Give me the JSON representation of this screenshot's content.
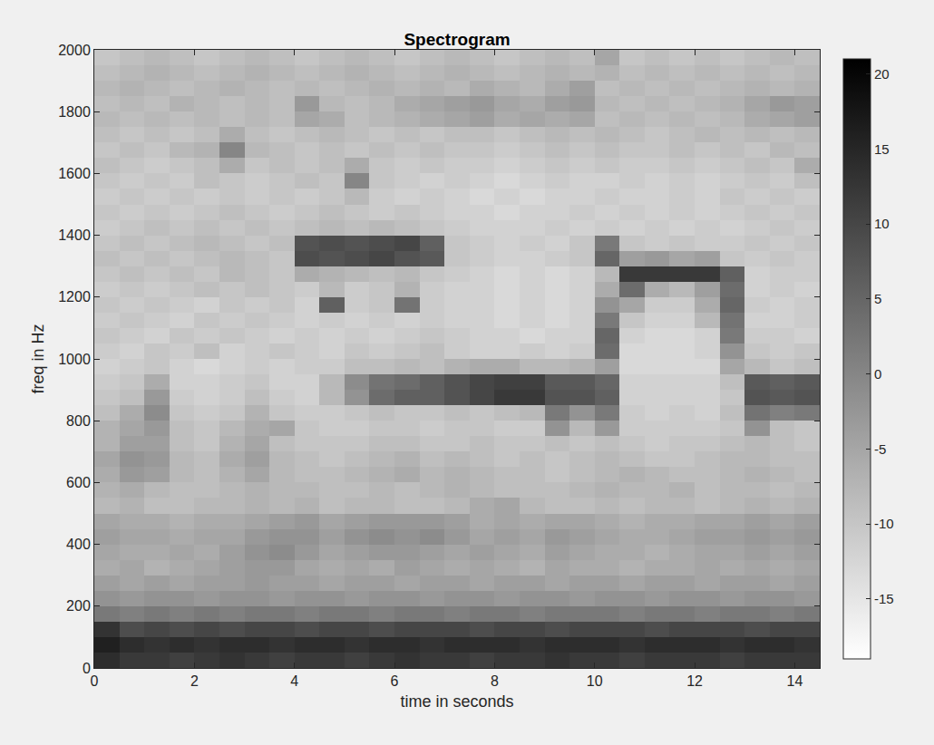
{
  "chart_data": {
    "type": "heatmap",
    "title": "Spectrogram",
    "x_label": "time in seconds",
    "y_label": "freq in Hz",
    "grid": false,
    "xlim": [
      0,
      14.5
    ],
    "ylim": [
      0,
      2000
    ],
    "xticks": [
      0,
      2,
      4,
      6,
      8,
      10,
      12,
      14
    ],
    "yticks": [
      0,
      200,
      400,
      600,
      800,
      1000,
      1200,
      1400,
      1600,
      1800,
      2000
    ],
    "color_range": [
      -19,
      21
    ],
    "color_ticks": [
      -15,
      -10,
      -5,
      0,
      5,
      10,
      15,
      20
    ],
    "x": [
      0.25,
      0.75,
      1.25,
      1.75,
      2.25,
      2.75,
      3.25,
      3.75,
      4.25,
      4.75,
      5.25,
      5.75,
      6.25,
      6.75,
      7.25,
      7.75,
      8.25,
      8.75,
      9.25,
      9.75,
      10.25,
      10.75,
      11.25,
      11.75,
      12.25,
      12.75,
      13.25,
      13.75,
      14.25
    ],
    "y": [
      25,
      75,
      125,
      175,
      225,
      275,
      325,
      375,
      425,
      475,
      525,
      575,
      625,
      675,
      725,
      775,
      825,
      875,
      925,
      975,
      1025,
      1075,
      1125,
      1175,
      1225,
      1275,
      1325,
      1375,
      1425,
      1475,
      1525,
      1575,
      1625,
      1675,
      1725,
      1775,
      1825,
      1875,
      1925,
      1975
    ],
    "z": [
      [
        14,
        12,
        12,
        11,
        12,
        13,
        12,
        11,
        12,
        12,
        11,
        12,
        13,
        12,
        12,
        11,
        12,
        12,
        13,
        12,
        12,
        11,
        12,
        12,
        12,
        11,
        12,
        12,
        12
      ],
      [
        16,
        14,
        13,
        14,
        13,
        14,
        14,
        13,
        14,
        14,
        13,
        14,
        14,
        13,
        14,
        14,
        14,
        13,
        14,
        14,
        14,
        13,
        14,
        14,
        14,
        13,
        14,
        14,
        13
      ],
      [
        13,
        9,
        10,
        9,
        10,
        9,
        10,
        10,
        9,
        10,
        10,
        9,
        10,
        10,
        10,
        9,
        10,
        10,
        9,
        10,
        10,
        10,
        9,
        10,
        10,
        10,
        9,
        10,
        10
      ],
      [
        2,
        1,
        2,
        1,
        2,
        1,
        2,
        2,
        1,
        2,
        2,
        1,
        2,
        2,
        1,
        2,
        2,
        1,
        2,
        2,
        2,
        1,
        2,
        2,
        1,
        2,
        2,
        1,
        2
      ],
      [
        -2,
        -3,
        -2,
        -2,
        -3,
        -2,
        -2,
        -3,
        -2,
        -2,
        -3,
        -2,
        -2,
        -3,
        -2,
        -2,
        -3,
        -2,
        -2,
        -3,
        -2,
        -2,
        -3,
        -2,
        -2,
        -3,
        -2,
        -2,
        -3
      ],
      [
        -4,
        -5,
        -4,
        -5,
        -4,
        -4,
        -3,
        -4,
        -4,
        -5,
        -4,
        -4,
        -5,
        -4,
        -4,
        -5,
        -4,
        -4,
        -5,
        -4,
        -4,
        -5,
        -4,
        -4,
        -5,
        -4,
        -4,
        -5,
        -4
      ],
      [
        -6,
        -5,
        -7,
        -6,
        -5,
        -4,
        -3,
        -3,
        -5,
        -6,
        -5,
        -6,
        -4,
        -5,
        -6,
        -5,
        -6,
        -7,
        -5,
        -6,
        -6,
        -7,
        -6,
        -6,
        -5,
        -6,
        -5,
        -6,
        -5
      ],
      [
        -5,
        -6,
        -6,
        -5,
        -6,
        -4,
        -2,
        -1,
        -3,
        -5,
        -4,
        -3,
        -3,
        -4,
        -5,
        -4,
        -5,
        -6,
        -4,
        -5,
        -6,
        -6,
        -7,
        -6,
        -5,
        -5,
        -4,
        -5,
        -4
      ],
      [
        -4,
        -5,
        -5,
        -6,
        -5,
        -5,
        -3,
        -2,
        -2,
        -4,
        -2,
        -1,
        -2,
        -1,
        -3,
        -5,
        -4,
        -5,
        -3,
        -4,
        -5,
        -6,
        -6,
        -5,
        -4,
        -4,
        -3,
        -4,
        -3
      ],
      [
        -5,
        -6,
        -6,
        -7,
        -6,
        -6,
        -5,
        -4,
        -3,
        -5,
        -4,
        -3,
        -3,
        -3,
        -4,
        -6,
        -5,
        -6,
        -5,
        -5,
        -6,
        -7,
        -6,
        -6,
        -5,
        -5,
        -4,
        -5,
        -4
      ],
      [
        -8,
        -7,
        -9,
        -9,
        -8,
        -8,
        -7,
        -8,
        -7,
        -9,
        -8,
        -8,
        -9,
        -9,
        -8,
        -6,
        -5,
        -8,
        -9,
        -9,
        -8,
        -9,
        -8,
        -8,
        -9,
        -8,
        -7,
        -8,
        -7
      ],
      [
        -7,
        -6,
        -8,
        -9,
        -9,
        -8,
        -7,
        -8,
        -8,
        -9,
        -9,
        -8,
        -9,
        -8,
        -7,
        -8,
        -9,
        -9,
        -9,
        -8,
        -7,
        -8,
        -8,
        -7,
        -9,
        -8,
        -8,
        -9,
        -8
      ],
      [
        -6,
        -3,
        -4,
        -8,
        -9,
        -7,
        -5,
        -8,
        -9,
        -9,
        -8,
        -7,
        -6,
        -8,
        -7,
        -8,
        -9,
        -9,
        -10,
        -9,
        -8,
        -7,
        -8,
        -9,
        -9,
        -8,
        -7,
        -8,
        -9
      ],
      [
        -5,
        -2,
        -3,
        -8,
        -9,
        -6,
        -4,
        -8,
        -9,
        -10,
        -9,
        -8,
        -7,
        -9,
        -8,
        -9,
        -10,
        -9,
        -10,
        -9,
        -8,
        -9,
        -10,
        -10,
        -9,
        -8,
        -8,
        -9,
        -9
      ],
      [
        -7,
        -4,
        -4,
        -9,
        -10,
        -7,
        -5,
        -9,
        -10,
        -10,
        -10,
        -9,
        -9,
        -10,
        -10,
        -9,
        -10,
        -10,
        -9,
        -10,
        -9,
        -10,
        -11,
        -10,
        -10,
        -9,
        -8,
        -9,
        -10
      ],
      [
        -7,
        -5,
        -3,
        -9,
        -10,
        -8,
        -6,
        -5,
        -10,
        -11,
        -11,
        -10,
        -10,
        -11,
        -10,
        -10,
        -11,
        -11,
        -2,
        -8,
        -3,
        -11,
        -11,
        -11,
        -11,
        -10,
        -2,
        -9,
        -10
      ],
      [
        -9,
        -6,
        -1,
        -10,
        -11,
        -10,
        -7,
        -10,
        -11,
        -11,
        -10,
        -9,
        -10,
        -10,
        -9,
        -10,
        -9,
        -8,
        2,
        -2,
        2,
        -11,
        -12,
        -11,
        -12,
        -9,
        3,
        1,
        2
      ],
      [
        -10,
        -9,
        -3,
        -11,
        -12,
        -11,
        -9,
        -11,
        -12,
        -8,
        -2,
        4,
        6,
        6,
        8,
        10,
        12,
        12,
        8,
        8,
        6,
        -12,
        -12,
        -12,
        -12,
        -10,
        8,
        7,
        8
      ],
      [
        -11,
        -10,
        -6,
        -12,
        -12,
        -11,
        -10,
        -12,
        -12,
        -8,
        -1,
        3,
        4,
        6,
        8,
        10,
        11,
        11,
        7,
        7,
        5,
        -12,
        -12,
        -12,
        -12,
        -9,
        7,
        6,
        7
      ],
      [
        -12,
        -11,
        -10,
        -12,
        -13,
        -12,
        -11,
        -12,
        -11,
        -11,
        -9,
        -9,
        -8,
        -9,
        -7,
        -6,
        -6,
        -8,
        -8,
        -7,
        -4,
        -13,
        -13,
        -13,
        -13,
        -5,
        -8,
        -10,
        -9
      ],
      [
        -11,
        -12,
        -10,
        -11,
        -9,
        -12,
        -11,
        -10,
        -11,
        -12,
        -10,
        -11,
        -10,
        -9,
        -11,
        -12,
        -12,
        -11,
        -12,
        -11,
        4,
        -13,
        -13,
        -13,
        -12,
        -2,
        -10,
        -11,
        -10
      ],
      [
        -10,
        -11,
        -12,
        -10,
        -11,
        -10,
        -11,
        -12,
        -11,
        -12,
        -11,
        -12,
        -11,
        -10,
        -11,
        -12,
        -12,
        -13,
        -12,
        -12,
        5,
        -12,
        -13,
        -13,
        -12,
        2,
        -11,
        -11,
        -12
      ],
      [
        -11,
        -10,
        -11,
        -12,
        -10,
        -11,
        -10,
        -11,
        -12,
        -11,
        -12,
        -11,
        -12,
        -11,
        -12,
        -12,
        -13,
        -12,
        -13,
        -12,
        2,
        -10,
        -12,
        -12,
        -8,
        3,
        -12,
        -12,
        -11
      ],
      [
        -10,
        -11,
        -10,
        -11,
        -12,
        -10,
        -11,
        -10,
        -12,
        6,
        -11,
        -10,
        3,
        -11,
        -12,
        -12,
        -13,
        -12,
        -13,
        -12,
        -2,
        -5,
        -11,
        -11,
        -6,
        5,
        -11,
        -12,
        -11
      ],
      [
        -11,
        -10,
        -11,
        -10,
        -9,
        -10,
        -9,
        -10,
        -11,
        -8,
        -11,
        -10,
        -7,
        -11,
        -12,
        -12,
        -13,
        -12,
        -13,
        -12,
        -6,
        4,
        -6,
        -8,
        -4,
        4,
        -12,
        -11,
        -12
      ],
      [
        -10,
        -9,
        -10,
        -9,
        -10,
        -8,
        -9,
        -10,
        -6,
        -7,
        -8,
        -9,
        -8,
        -10,
        -11,
        -12,
        -13,
        -12,
        -13,
        -12,
        -8,
        12,
        12,
        12,
        12,
        6,
        -12,
        -11,
        -11
      ],
      [
        -9,
        -10,
        -9,
        -10,
        -9,
        -8,
        -9,
        -10,
        9,
        8,
        9,
        10,
        8,
        7,
        -10,
        -11,
        -12,
        -12,
        -11,
        -10,
        5,
        -4,
        -3,
        -5,
        -4,
        -10,
        -11,
        -10,
        -11
      ],
      [
        -10,
        -9,
        -10,
        -9,
        -8,
        -9,
        -10,
        -9,
        8,
        9,
        8,
        9,
        10,
        6,
        -10,
        -11,
        -12,
        -11,
        -12,
        -10,
        2,
        -10,
        -11,
        -10,
        -11,
        -11,
        -10,
        -11,
        -10
      ],
      [
        -11,
        -10,
        -9,
        -10,
        -9,
        -10,
        -9,
        -10,
        -9,
        -8,
        -9,
        -8,
        -9,
        -10,
        -11,
        -12,
        -12,
        -12,
        -11,
        -12,
        -11,
        -12,
        -11,
        -12,
        -11,
        -12,
        -11,
        -10,
        -11
      ],
      [
        -10,
        -11,
        -10,
        -11,
        -10,
        -9,
        -10,
        -11,
        -10,
        -9,
        -10,
        -11,
        -10,
        -11,
        -12,
        -12,
        -13,
        -12,
        -12,
        -11,
        -12,
        -11,
        -12,
        -11,
        -12,
        -11,
        -10,
        -11,
        -10
      ],
      [
        -11,
        -10,
        -11,
        -10,
        -11,
        -10,
        -11,
        -10,
        -11,
        -10,
        -8,
        -11,
        -12,
        -11,
        -12,
        -13,
        -12,
        -13,
        -12,
        -12,
        -11,
        -12,
        -12,
        -11,
        -12,
        -10,
        -11,
        -10,
        -11
      ],
      [
        -10,
        -11,
        -10,
        -11,
        -9,
        -10,
        -11,
        -10,
        -9,
        -10,
        0,
        -10,
        -11,
        -12,
        -11,
        -12,
        -13,
        -12,
        -11,
        -12,
        -12,
        -11,
        -12,
        -11,
        -12,
        -11,
        -10,
        -11,
        -9
      ],
      [
        -9,
        -10,
        -11,
        -10,
        -9,
        -6,
        -10,
        -9,
        -10,
        -9,
        -6,
        -10,
        -11,
        -10,
        -11,
        -11,
        -12,
        -11,
        -10,
        -11,
        -10,
        -11,
        -11,
        -10,
        -11,
        -10,
        -9,
        -10,
        -6
      ],
      [
        -10,
        -9,
        -10,
        -8,
        -7,
        0,
        -8,
        -9,
        -10,
        -9,
        -10,
        -9,
        -10,
        -9,
        -10,
        -10,
        -11,
        -10,
        -9,
        -10,
        -9,
        -10,
        -10,
        -9,
        -10,
        -9,
        -10,
        -8,
        -9
      ],
      [
        -9,
        -10,
        -9,
        -10,
        -9,
        -6,
        -9,
        -10,
        -9,
        -8,
        -9,
        -10,
        -9,
        -10,
        -9,
        -9,
        -10,
        -9,
        -8,
        -9,
        -8,
        -9,
        -10,
        -9,
        -8,
        -9,
        -8,
        -9,
        -8
      ],
      [
        -8,
        -9,
        -8,
        -9,
        -8,
        -9,
        -8,
        -9,
        -5,
        -6,
        -9,
        -8,
        -7,
        -6,
        -5,
        -4,
        -6,
        -5,
        -6,
        -5,
        -9,
        -8,
        -9,
        -8,
        -9,
        -8,
        -6,
        -5,
        -4
      ],
      [
        -9,
        -8,
        -9,
        -7,
        -8,
        -9,
        -8,
        -9,
        -3,
        -8,
        -9,
        -8,
        -6,
        -5,
        -4,
        -3,
        -5,
        -6,
        -4,
        -3,
        -8,
        -9,
        -8,
        -9,
        -8,
        -7,
        -5,
        -3,
        -4
      ],
      [
        -8,
        -7,
        -8,
        -9,
        -8,
        -7,
        -8,
        -9,
        -8,
        -9,
        -8,
        -7,
        -8,
        -7,
        -8,
        -6,
        -7,
        -8,
        -6,
        -4,
        -9,
        -8,
        -9,
        -8,
        -9,
        -8,
        -7,
        -8,
        -7
      ],
      [
        -9,
        -8,
        -7,
        -8,
        -9,
        -8,
        -7,
        -8,
        -9,
        -8,
        -7,
        -8,
        -9,
        -8,
        -7,
        -8,
        -9,
        -8,
        -7,
        -8,
        -7,
        -9,
        -8,
        -9,
        -8,
        -9,
        -8,
        -9,
        -8
      ],
      [
        -10,
        -9,
        -8,
        -9,
        -10,
        -9,
        -8,
        -9,
        -10,
        -9,
        -8,
        -9,
        -10,
        -9,
        -8,
        -9,
        -10,
        -9,
        -8,
        -9,
        -5,
        -10,
        -9,
        -10,
        -9,
        -10,
        -9,
        -8,
        -9
      ]
    ]
  }
}
